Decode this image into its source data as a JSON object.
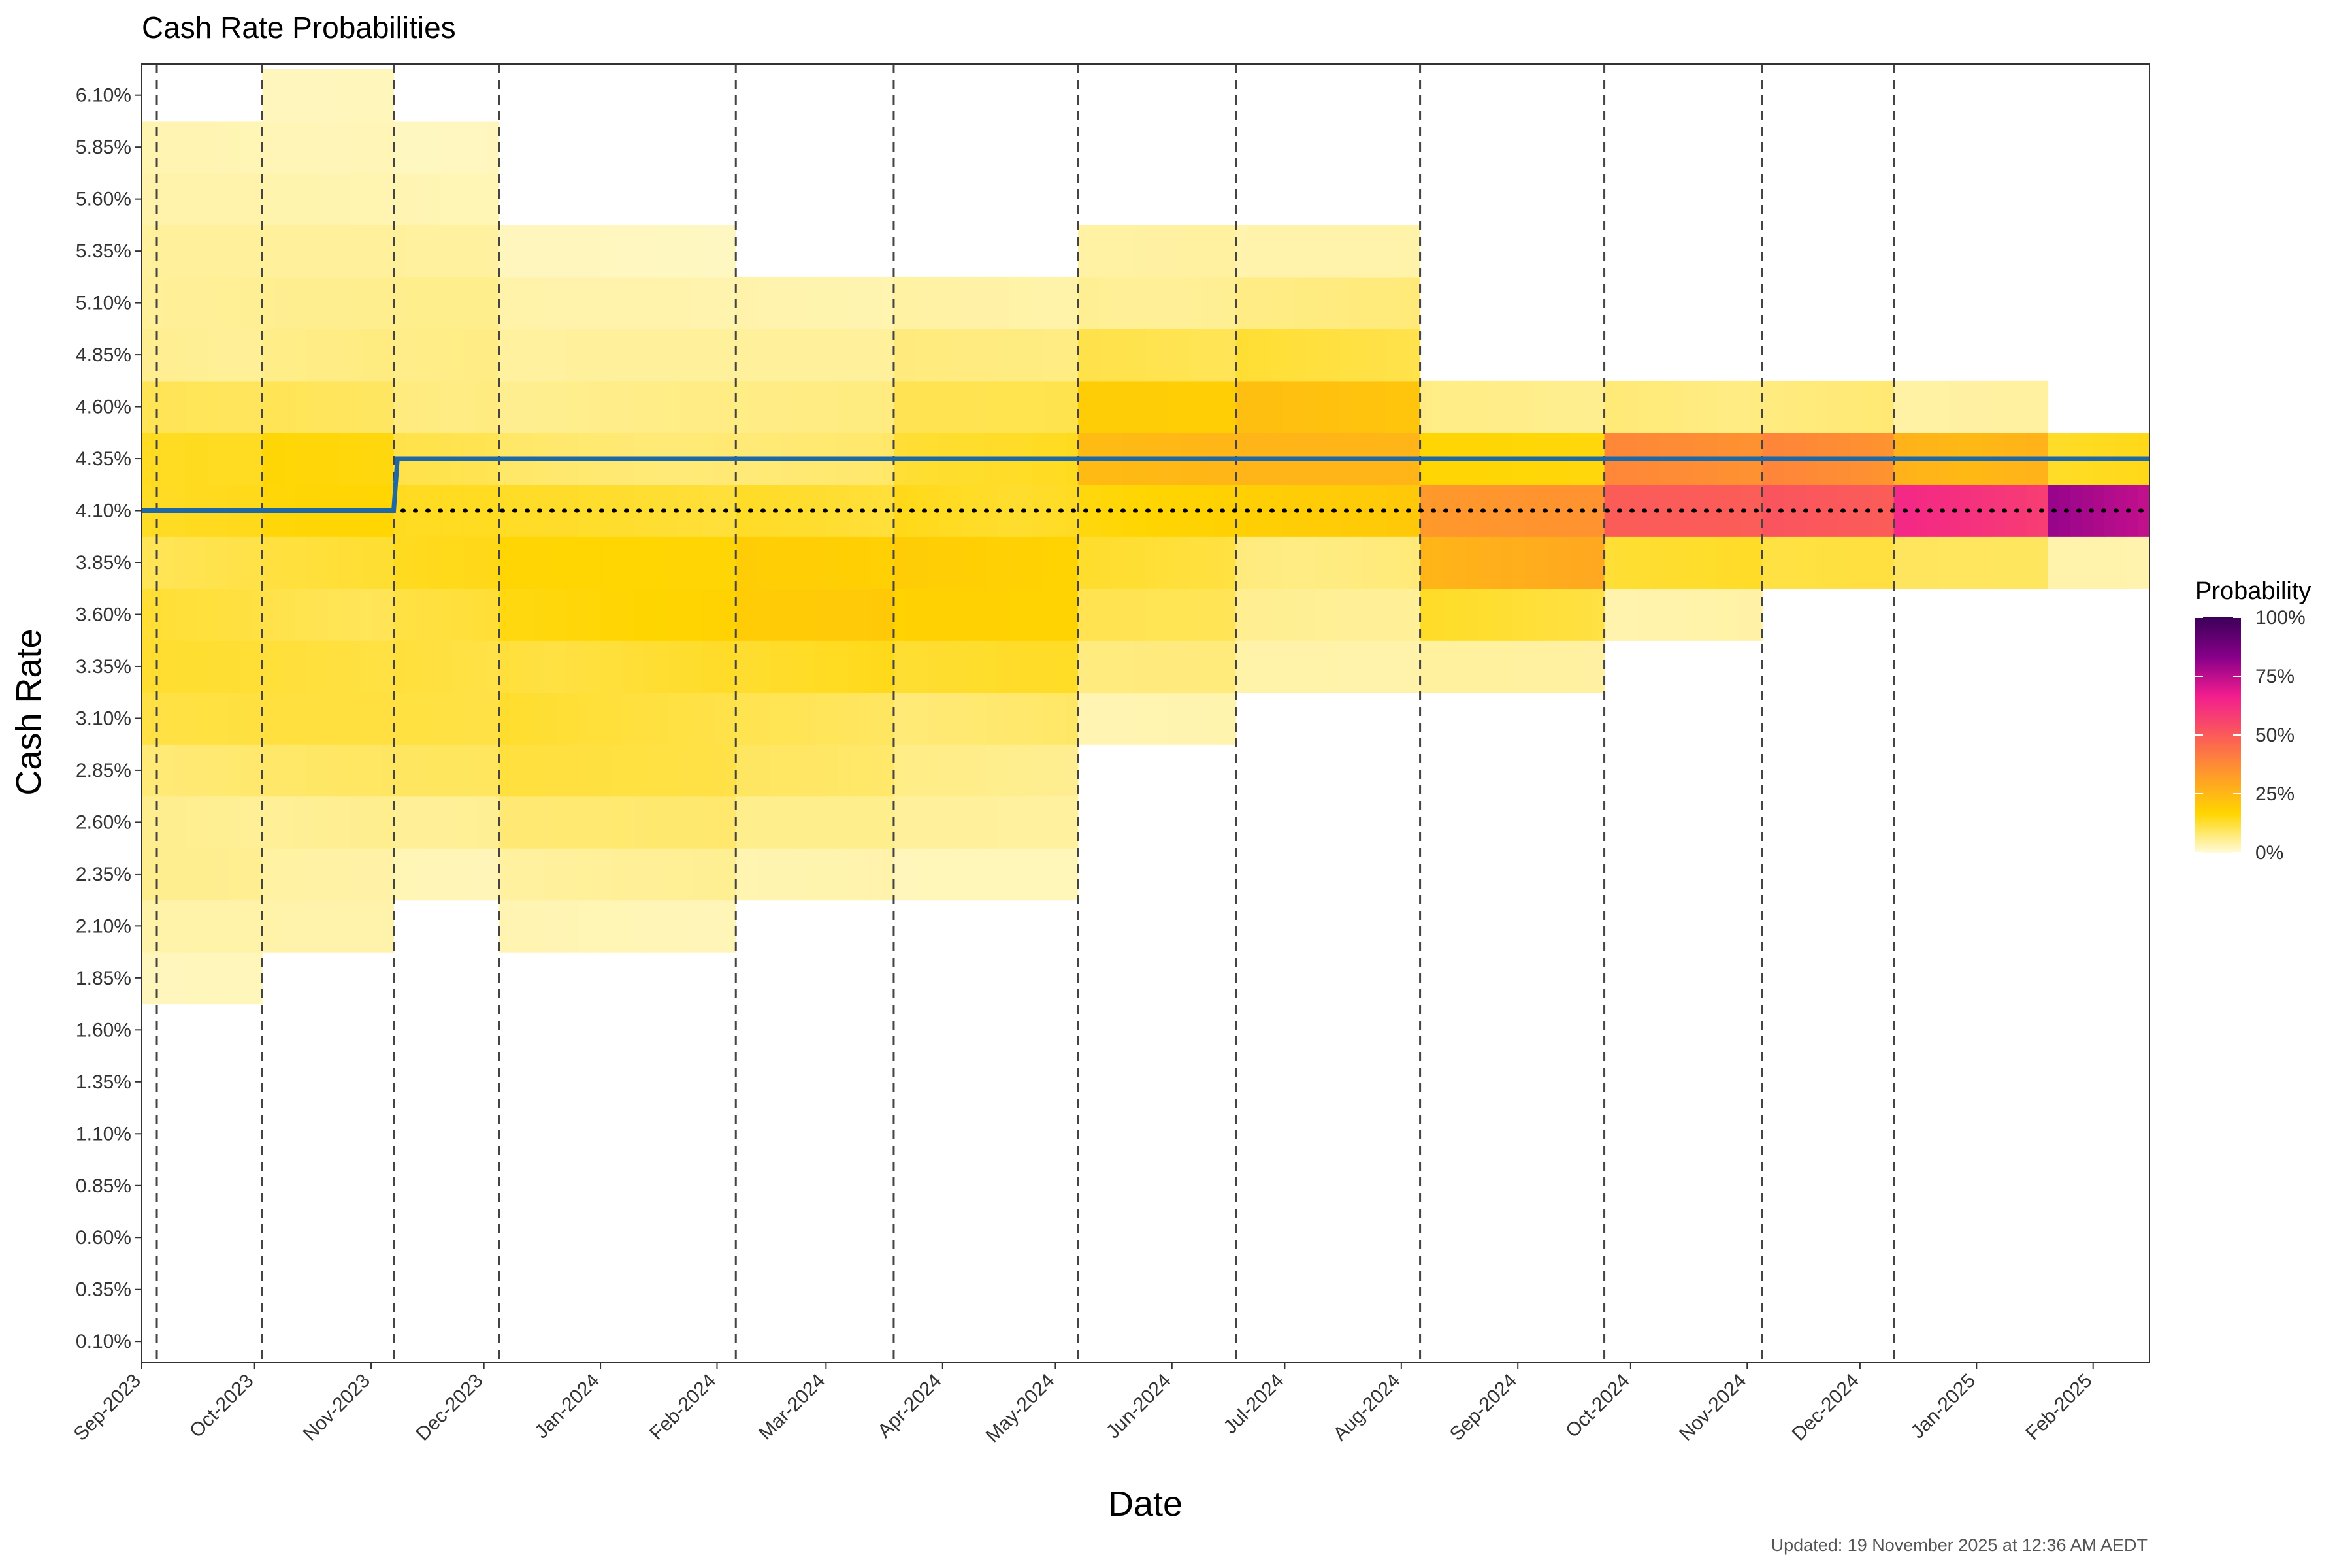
{
  "chart_data": {
    "type": "heatmap",
    "title": "Cash Rate Probabilities",
    "xlabel": "Date",
    "ylabel": "Cash Rate",
    "x_range": [
      "2023-09-01",
      "2025-02-16"
    ],
    "x_ticks": [
      "Sep-2023",
      "Oct-2023",
      "Nov-2023",
      "Dec-2023",
      "Jan-2024",
      "Feb-2024",
      "Mar-2024",
      "Apr-2024",
      "May-2024",
      "Jun-2024",
      "Jul-2024",
      "Aug-2024",
      "Sep-2024",
      "Oct-2024",
      "Nov-2024",
      "Dec-2024",
      "Jan-2025",
      "Feb-2025"
    ],
    "y_ticks": [
      "0.10%",
      "0.35%",
      "0.60%",
      "0.85%",
      "1.10%",
      "1.35%",
      "1.60%",
      "1.85%",
      "2.10%",
      "2.35%",
      "2.60%",
      "2.85%",
      "3.10%",
      "3.35%",
      "3.60%",
      "3.85%",
      "4.10%",
      "4.35%",
      "4.60%",
      "4.85%",
      "5.10%",
      "5.35%",
      "5.60%",
      "5.85%",
      "6.10%"
    ],
    "ylim": [
      0.0,
      6.25
    ],
    "meeting_dates": [
      "2023-09-05",
      "2023-10-03",
      "2023-11-07",
      "2023-12-05",
      "2024-02-06",
      "2024-03-19",
      "2024-05-07",
      "2024-06-18",
      "2024-08-06",
      "2024-09-24",
      "2024-11-05",
      "2024-12-10"
    ],
    "current_rate": 4.1,
    "realized_rate_path": [
      {
        "date": "2023-09-01",
        "rate": 4.1
      },
      {
        "date": "2023-11-07",
        "rate": 4.1
      },
      {
        "date": "2023-11-08",
        "rate": 4.35
      },
      {
        "date": "2025-02-16",
        "rate": 4.35
      }
    ],
    "probability_periods": [
      {
        "start": "2023-09-01",
        "end": "2023-10-03",
        "probs": {
          "1.85": 0.02,
          "2.10": 0.03,
          "2.35": 0.05,
          "2.60": 0.06,
          "2.85": 0.08,
          "3.10": 0.1,
          "3.35": 0.11,
          "3.60": 0.12,
          "3.85": 0.12,
          "4.10": 0.13,
          "4.35": 0.12,
          "4.60": 0.09,
          "4.85": 0.06,
          "5.10": 0.05,
          "5.35": 0.04,
          "5.60": 0.03,
          "5.85": 0.03
        }
      },
      {
        "start": "2023-10-03",
        "end": "2023-11-07",
        "probs": {
          "2.10": 0.03,
          "2.35": 0.04,
          "2.60": 0.06,
          "2.85": 0.08,
          "3.10": 0.1,
          "3.35": 0.11,
          "3.60": 0.12,
          "3.85": 0.12,
          "4.10": 0.14,
          "4.35": 0.14,
          "4.60": 0.1,
          "4.85": 0.07,
          "5.10": 0.05,
          "5.35": 0.04,
          "5.60": 0.03,
          "5.85": 0.03,
          "6.10": 0.02
        }
      },
      {
        "start": "2023-11-07",
        "end": "2023-12-05",
        "probs": {
          "2.35": 0.03,
          "2.60": 0.05,
          "2.85": 0.08,
          "3.10": 0.1,
          "3.35": 0.12,
          "3.60": 0.13,
          "3.85": 0.13,
          "4.10": 0.12,
          "4.35": 0.1,
          "4.60": 0.08,
          "4.85": 0.06,
          "5.10": 0.05,
          "5.35": 0.04,
          "5.60": 0.03,
          "5.85": 0.02
        }
      },
      {
        "start": "2023-12-05",
        "end": "2024-02-06",
        "probs": {
          "2.10": 0.03,
          "2.35": 0.05,
          "2.60": 0.07,
          "2.85": 0.1,
          "3.10": 0.12,
          "3.35": 0.14,
          "3.60": 0.15,
          "3.85": 0.14,
          "4.10": 0.12,
          "4.35": 0.09,
          "4.60": 0.06,
          "4.85": 0.04,
          "5.10": 0.03,
          "5.35": 0.02
        }
      },
      {
        "start": "2024-02-06",
        "end": "2024-03-19",
        "probs": {
          "2.35": 0.03,
          "2.60": 0.05,
          "2.85": 0.08,
          "3.10": 0.11,
          "3.35": 0.14,
          "3.60": 0.17,
          "3.85": 0.16,
          "4.10": 0.13,
          "4.35": 0.09,
          "4.60": 0.06,
          "4.85": 0.04,
          "5.10": 0.03
        }
      },
      {
        "start": "2024-03-19",
        "end": "2024-05-07",
        "probs": {
          "2.35": 0.02,
          "2.60": 0.04,
          "2.85": 0.06,
          "3.10": 0.09,
          "3.35": 0.12,
          "3.60": 0.15,
          "3.85": 0.17,
          "4.10": 0.16,
          "4.35": 0.13,
          "4.60": 0.09,
          "4.85": 0.06,
          "5.10": 0.04
        }
      },
      {
        "start": "2024-05-07",
        "end": "2024-06-18",
        "probs": {
          "3.10": 0.03,
          "3.35": 0.06,
          "3.60": 0.09,
          "3.85": 0.13,
          "4.10": 0.18,
          "4.35": 0.22,
          "4.60": 0.16,
          "4.85": 0.1,
          "5.10": 0.06,
          "5.35": 0.04
        }
      },
      {
        "start": "2024-06-18",
        "end": "2024-08-06",
        "probs": {
          "3.35": 0.03,
          "3.60": 0.05,
          "3.85": 0.08,
          "4.10": 0.18,
          "4.35": 0.22,
          "4.60": 0.2,
          "4.85": 0.13,
          "5.10": 0.07,
          "5.35": 0.03
        }
      },
      {
        "start": "2024-08-06",
        "end": "2024-09-24",
        "probs": {
          "3.35": 0.04,
          "3.60": 0.14,
          "3.85": 0.28,
          "4.10": 0.3,
          "4.35": 0.14,
          "4.60": 0.06
        }
      },
      {
        "start": "2024-09-24",
        "end": "2024-11-05",
        "probs": {
          "3.60": 0.04,
          "3.85": 0.12,
          "4.10": 0.42,
          "4.35": 0.34,
          "4.60": 0.08
        }
      },
      {
        "start": "2024-11-05",
        "end": "2024-12-10",
        "probs": {
          "3.85": 0.1,
          "4.10": 0.44,
          "4.35": 0.38,
          "4.60": 0.08
        }
      },
      {
        "start": "2024-12-10",
        "end": "2025-01-20",
        "probs": {
          "3.85": 0.08,
          "4.10": 0.58,
          "4.35": 0.3,
          "4.60": 0.04
        }
      },
      {
        "start": "2025-01-20",
        "end": "2025-02-16",
        "probs": {
          "3.85": 0.03,
          "4.10": 0.82,
          "4.35": 0.15
        }
      }
    ],
    "legend": {
      "title": "Probability",
      "labels": [
        "100%",
        "75%",
        "50%",
        "25%",
        "0%"
      ],
      "position": "right",
      "colors": [
        "#fffbd8",
        "#ffd500",
        "#ff9a2a",
        "#fb5a5a",
        "#f21d8f",
        "#860089",
        "#3b0058"
      ]
    },
    "colors": {
      "rate_line": "#1f68a6",
      "current_line": "#000000",
      "meeting_line": "#444444"
    }
  },
  "footer": "Updated: 19 November 2025 at 12:36 AM AEDT"
}
